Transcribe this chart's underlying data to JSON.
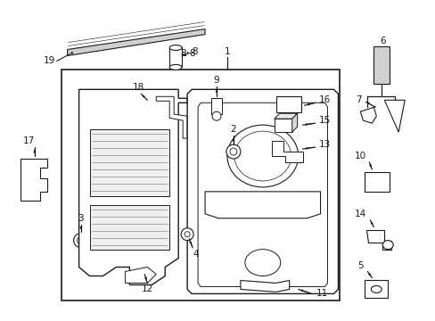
{
  "bg": "#ffffff",
  "lc": "#1a1a1a",
  "tc": "#1a1a1a",
  "fw": 4.89,
  "fh": 3.6,
  "dpi": 100
}
